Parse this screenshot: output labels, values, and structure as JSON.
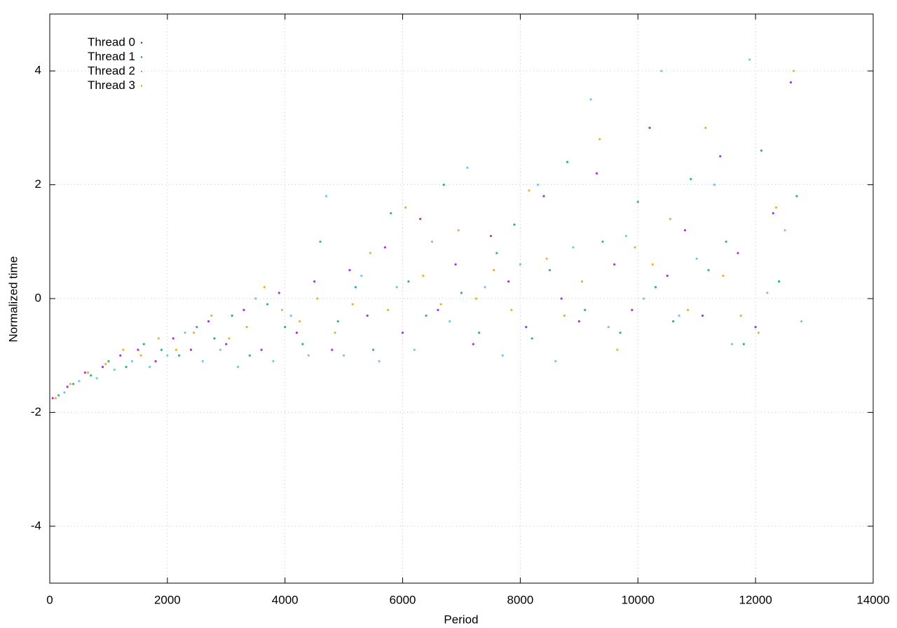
{
  "chart_data": {
    "type": "scatter",
    "xlabel": "Period",
    "ylabel": "Normalized time",
    "xlim": [
      0,
      14000
    ],
    "ylim": [
      -5,
      5
    ],
    "xticks": [
      0,
      2000,
      4000,
      6000,
      8000,
      10000,
      12000,
      14000
    ],
    "yticks": [
      -4,
      -2,
      0,
      2,
      4
    ],
    "grid": true,
    "legend": "top-left",
    "series": [
      {
        "name": "Thread 0",
        "color": "#9400d3",
        "x": [
          50,
          300,
          600,
          900,
          1200,
          1500,
          1800,
          2100,
          2400,
          2700,
          3000,
          3300,
          3600,
          3900,
          4200,
          4500,
          4800,
          5100,
          5400,
          5700,
          6000,
          6300,
          6600,
          6900,
          7200,
          7500,
          7800,
          8100,
          8400,
          8700,
          9000,
          9300,
          9600,
          9900,
          10200,
          10500,
          10800,
          11100,
          11400,
          11700,
          12000,
          12300,
          12600
        ],
        "values": [
          -1.75,
          -1.55,
          -1.3,
          -1.2,
          -1.0,
          -0.9,
          -1.1,
          -0.7,
          -0.9,
          -0.4,
          -0.8,
          -0.2,
          -0.9,
          0.1,
          -0.6,
          0.3,
          -0.9,
          0.5,
          -0.3,
          0.9,
          -0.6,
          1.4,
          -0.2,
          0.6,
          -0.8,
          1.1,
          0.3,
          -0.5,
          1.8,
          0.0,
          -0.4,
          2.2,
          0.6,
          -0.2,
          3.0,
          0.4,
          1.2,
          -0.3,
          2.5,
          0.8,
          -0.5,
          1.5,
          3.8
        ]
      },
      {
        "name": "Thread 1",
        "color": "#009e73",
        "x": [
          150,
          400,
          700,
          1000,
          1300,
          1600,
          1900,
          2200,
          2500,
          2800,
          3100,
          3400,
          3700,
          4000,
          4300,
          4600,
          4900,
          5200,
          5500,
          5800,
          6100,
          6400,
          6700,
          7000,
          7300,
          7600,
          7900,
          8200,
          8500,
          8800,
          9100,
          9400,
          9700,
          10000,
          10300,
          10600,
          10900,
          11200,
          11500,
          11800,
          12100,
          12400,
          12700
        ],
        "values": [
          -1.7,
          -1.5,
          -1.35,
          -1.1,
          -1.2,
          -0.8,
          -0.9,
          -1.0,
          -0.5,
          -0.7,
          -0.3,
          -1.0,
          -0.1,
          -0.5,
          -0.8,
          1.0,
          -0.4,
          0.2,
          -0.9,
          1.5,
          0.3,
          -0.3,
          2.0,
          0.1,
          -0.6,
          0.8,
          1.3,
          -0.7,
          0.5,
          2.4,
          -0.2,
          1.0,
          -0.6,
          1.7,
          0.2,
          -0.4,
          2.1,
          0.5,
          1.0,
          -0.8,
          2.6,
          0.3,
          1.8
        ]
      },
      {
        "name": "Thread 2",
        "color": "#56b4e9",
        "x": [
          250,
          500,
          800,
          1100,
          1400,
          1700,
          2000,
          2300,
          2600,
          2900,
          3200,
          3500,
          3800,
          4100,
          4400,
          4700,
          5000,
          5300,
          5600,
          5900,
          6200,
          6500,
          6800,
          7100,
          7400,
          7700,
          8000,
          8300,
          8600,
          8900,
          9200,
          9500,
          9800,
          10100,
          10400,
          10700,
          11000,
          11300,
          11600,
          11900,
          12200,
          12500,
          12780
        ],
        "values": [
          -1.65,
          -1.45,
          -1.4,
          -1.25,
          -1.1,
          -1.2,
          -1.0,
          -0.6,
          -1.1,
          -0.9,
          -1.2,
          0.0,
          -1.1,
          -0.3,
          -1.0,
          1.8,
          -1.0,
          0.4,
          -1.1,
          0.2,
          -0.9,
          1.0,
          -0.4,
          2.3,
          0.2,
          -1.0,
          0.6,
          2.0,
          -1.1,
          0.9,
          3.5,
          -0.5,
          1.1,
          0.0,
          4.0,
          -0.3,
          0.7,
          2.0,
          -0.8,
          4.2,
          0.1,
          1.2,
          -0.4
        ]
      },
      {
        "name": "Thread 3",
        "color": "#e69f00",
        "x": [
          100,
          350,
          650,
          950,
          1250,
          1550,
          1850,
          2150,
          2450,
          2750,
          3050,
          3350,
          3650,
          3950,
          4250,
          4550,
          4850,
          5150,
          5450,
          5750,
          6050,
          6350,
          6650,
          6950,
          7250,
          7550,
          7850,
          8150,
          8450,
          8750,
          9050,
          9350,
          9650,
          9950,
          10250,
          10550,
          10850,
          11150,
          11450,
          11750,
          12050,
          12350,
          12650
        ],
        "values": [
          -1.75,
          -1.5,
          -1.3,
          -1.15,
          -0.9,
          -1.0,
          -0.7,
          -0.9,
          -0.6,
          -0.3,
          -0.7,
          -0.5,
          0.2,
          -0.2,
          -0.4,
          0.0,
          -0.6,
          -0.1,
          0.8,
          -0.2,
          1.6,
          0.4,
          -0.1,
          1.2,
          0.0,
          0.5,
          -0.2,
          1.9,
          0.7,
          -0.3,
          0.3,
          2.8,
          -0.9,
          0.9,
          0.6,
          1.4,
          -0.2,
          3.0,
          0.4,
          -0.3,
          -0.6,
          1.6,
          4.0
        ]
      }
    ]
  }
}
